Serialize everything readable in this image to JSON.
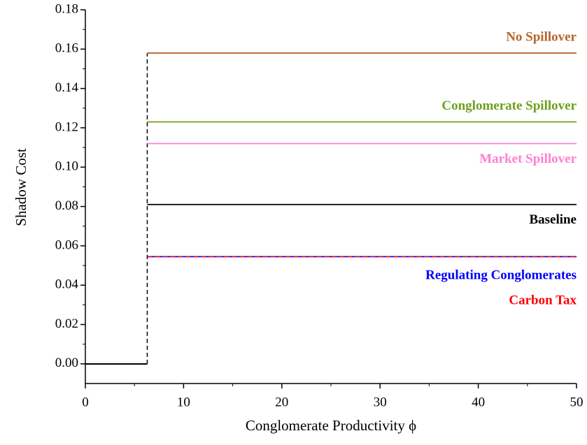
{
  "chart_data": {
    "type": "step",
    "x_label": "Conglomerate Productivity ϕ",
    "y_label": "Shadow Cost",
    "x": [
      0,
      6.3,
      50
    ],
    "series": [
      {
        "name": "No Spillover",
        "color": "#b5652a",
        "values": [
          0,
          0.158,
          0.158
        ]
      },
      {
        "name": "Conglomerate Spillover",
        "color": "#6f9f1e",
        "values": [
          0,
          0.123,
          0.123
        ]
      },
      {
        "name": "Market Spillover",
        "color": "#ff7fcf",
        "values": [
          0,
          0.112,
          0.112
        ]
      },
      {
        "name": "Baseline",
        "color": "#000000",
        "values": [
          0,
          0.081,
          0.081
        ]
      },
      {
        "name": "Regulating Conglomerates",
        "color": "#0000ff",
        "values": [
          0,
          0.0545,
          0.0545
        ]
      },
      {
        "name": "Carbon Tax",
        "color": "#ff0000",
        "dashed": true,
        "values": [
          0,
          0.0545,
          0.0545
        ]
      }
    ],
    "xlim": [
      0,
      50
    ],
    "xticks": [
      0,
      10,
      20,
      30,
      40,
      50
    ],
    "ylim": [
      -0.01,
      0.18
    ],
    "yticks": [
      {
        "value": 0,
        "label": "0.00"
      },
      0.02,
      0.04,
      0.06,
      0.08,
      {
        "value": 0.1,
        "label": "0.10"
      },
      0.12,
      0.14,
      0.16,
      0.18
    ],
    "grid": false
  }
}
